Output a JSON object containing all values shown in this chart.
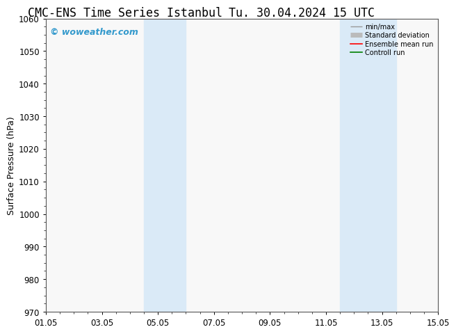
{
  "title_left": "CMC-ENS Time Series Istanbul",
  "title_right": "Tu. 30.04.2024 15 UTC",
  "ylabel": "Surface Pressure (hPa)",
  "ylim": [
    970,
    1060
  ],
  "yticks": [
    970,
    980,
    990,
    1000,
    1010,
    1020,
    1030,
    1040,
    1050,
    1060
  ],
  "xtick_labels": [
    "01.05",
    "03.05",
    "05.05",
    "07.05",
    "09.05",
    "11.05",
    "13.05",
    "15.05"
  ],
  "xtick_positions": [
    0,
    2,
    4,
    6,
    8,
    10,
    12,
    14
  ],
  "xlim": [
    0,
    14
  ],
  "shaded_bands": [
    {
      "x_start": 3.5,
      "x_end": 5.0
    },
    {
      "x_start": 10.5,
      "x_end": 12.5
    }
  ],
  "shaded_color": "#daeaf7",
  "background_color": "#ffffff",
  "plot_bg_color": "#f8f8f8",
  "watermark_text": "© woweather.com",
  "watermark_color": "#3399cc",
  "legend_labels": [
    "min/max",
    "Standard deviation",
    "Ensemble mean run",
    "Controll run"
  ],
  "legend_colors_line": [
    "#999999",
    "#bbbbbb",
    "#ff0000",
    "#008000"
  ],
  "title_fontsize": 12,
  "axis_label_fontsize": 9,
  "tick_fontsize": 8.5,
  "watermark_fontsize": 9
}
